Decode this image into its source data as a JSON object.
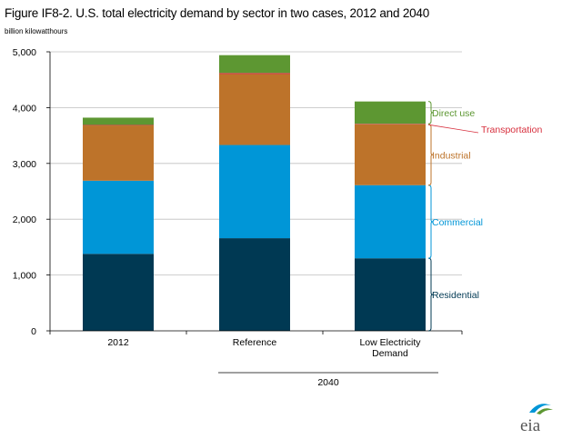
{
  "title": "Figure IF8-2. U.S. total electricity demand by sector in two cases, 2012 and 2040",
  "unit_label": "billion kilowatthours",
  "group_label": "2040",
  "logo_text": "eia",
  "chart_data": {
    "type": "bar",
    "stacked": true,
    "categories": [
      "2012",
      "Reference",
      "Low Electricity Demand"
    ],
    "category_lines": [
      [
        "2012"
      ],
      [
        "Reference"
      ],
      [
        "Low Electricity",
        "Demand"
      ]
    ],
    "ylim": [
      0,
      5000
    ],
    "yticks": [
      0,
      1000,
      2000,
      3000,
      4000,
      5000
    ],
    "ytick_labels": [
      "0",
      "1,000",
      "2,000",
      "3,000",
      "4,000",
      "5,000"
    ],
    "grid": true,
    "series": [
      {
        "name": "Residential",
        "color": "#003953",
        "label_color": "#003953",
        "values": [
          1380,
          1660,
          1300
        ]
      },
      {
        "name": "Commercial",
        "color": "#0096D7",
        "label_color": "#0096D7",
        "values": [
          1310,
          1670,
          1310
        ]
      },
      {
        "name": "Industrial",
        "color": "#BD732A",
        "label_color": "#BD732A",
        "values": [
          990,
          1270,
          1090
        ]
      },
      {
        "name": "Transportation",
        "color": "#D72F3D",
        "label_color": "#D72F3D",
        "values": [
          10,
          20,
          10
        ]
      },
      {
        "name": "Direct use",
        "color": "#5D9732",
        "label_color": "#5D9732",
        "values": [
          130,
          320,
          400
        ]
      }
    ]
  }
}
